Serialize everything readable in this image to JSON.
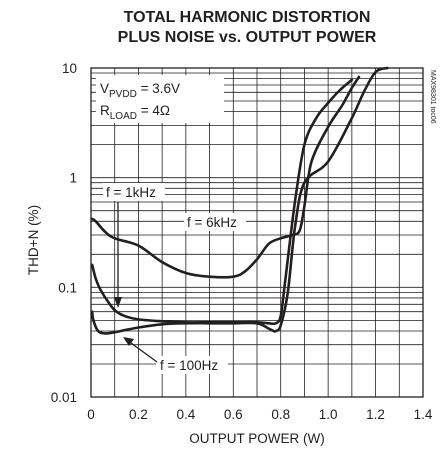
{
  "chart_data": {
    "type": "line",
    "title_lines": [
      "TOTAL HARMONIC DISTORTION",
      "PLUS NOISE vs. OUTPUT POWER"
    ],
    "xlabel": "OUTPUT POWER (W)",
    "ylabel": "THD+N (%)",
    "x_scale": "linear",
    "y_scale": "log",
    "xlim": [
      0,
      1.4
    ],
    "ylim": [
      0.01,
      10
    ],
    "x_ticks": [
      0,
      0.2,
      0.4,
      0.6,
      0.8,
      1.0,
      1.2,
      1.4
    ],
    "x_tick_labels": [
      "0",
      "0.2",
      "0.4",
      "0.6",
      "0.8",
      "1.0",
      "1.2",
      "1.4"
    ],
    "y_ticks": [
      0.01,
      0.1,
      1,
      10
    ],
    "y_tick_labels": [
      "0.01",
      "0.1",
      "1",
      "10"
    ],
    "grid": true,
    "conditions": {
      "vpvdd": {
        "main": "V",
        "sub": "PVDD",
        "rest": " = 3.6V"
      },
      "rload": {
        "main": "R",
        "sub": "LOAD",
        "rest": " = 4Ω"
      }
    },
    "side_code": "MAX98301 toc06",
    "series": [
      {
        "name": "f = 1kHz",
        "x": [
          0.005,
          0.02,
          0.04,
          0.07,
          0.1,
          0.14,
          0.2,
          0.3,
          0.4,
          0.5,
          0.6,
          0.7,
          0.75,
          0.78,
          0.8,
          0.82,
          0.86,
          0.9,
          0.95,
          1.0,
          1.05,
          1.1
        ],
        "y": [
          0.16,
          0.12,
          0.095,
          0.075,
          0.062,
          0.055,
          0.051,
          0.049,
          0.048,
          0.048,
          0.048,
          0.048,
          0.047,
          0.047,
          0.055,
          0.12,
          0.6,
          2.0,
          3.5,
          4.8,
          6.3,
          7.8
        ]
      },
      {
        "name": "f = 6kHz",
        "x": [
          0.005,
          0.02,
          0.06,
          0.1,
          0.2,
          0.3,
          0.4,
          0.5,
          0.6,
          0.65,
          0.7,
          0.75,
          0.8,
          0.85,
          0.88,
          0.9,
          0.93,
          1.0,
          1.06,
          1.1,
          1.13
        ],
        "y": [
          0.42,
          0.4,
          0.32,
          0.28,
          0.24,
          0.17,
          0.135,
          0.125,
          0.125,
          0.14,
          0.18,
          0.25,
          0.28,
          0.3,
          0.33,
          0.55,
          1.4,
          2.9,
          4.6,
          6.6,
          8.3
        ]
      },
      {
        "name": "f = 100Hz",
        "x": [
          0.005,
          0.01,
          0.03,
          0.06,
          0.1,
          0.2,
          0.3,
          0.4,
          0.5,
          0.6,
          0.7,
          0.75,
          0.77,
          0.78,
          0.8,
          0.83,
          0.86,
          0.9,
          1.0,
          1.1,
          1.15,
          1.2,
          1.25
        ],
        "y": [
          0.06,
          0.05,
          0.04,
          0.038,
          0.039,
          0.043,
          0.046,
          0.047,
          0.047,
          0.047,
          0.047,
          0.042,
          0.04,
          0.04,
          0.045,
          0.09,
          0.35,
          0.9,
          1.4,
          3.5,
          6.0,
          9.2,
          10.0
        ]
      }
    ]
  }
}
